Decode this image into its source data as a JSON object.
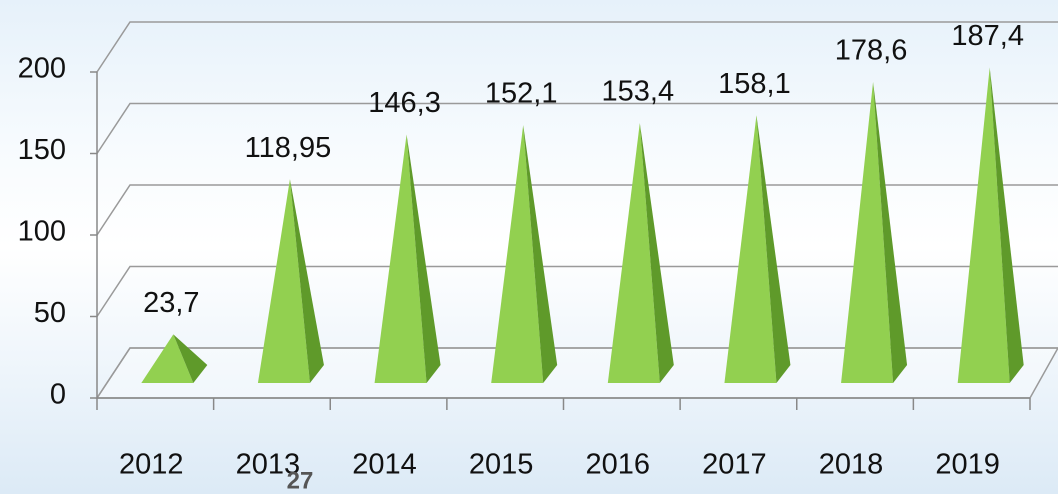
{
  "chart_data": {
    "type": "pyramid",
    "categories": [
      "2012",
      "2013",
      "2014",
      "2015",
      "2016",
      "2017",
      "2018",
      "2019"
    ],
    "values": [
      23.7,
      118.95,
      146.3,
      152.1,
      153.4,
      158.1,
      178.6,
      187.4
    ],
    "value_labels": [
      "23,7",
      "118,95",
      "146,3",
      "152,1",
      "153,4",
      "158,1",
      "178,6",
      "187,4"
    ],
    "color": "#92d050",
    "ylim": [
      0,
      200
    ],
    "yticks": [
      0,
      50,
      100,
      150,
      200
    ],
    "grid": true
  },
  "page_number": "27"
}
